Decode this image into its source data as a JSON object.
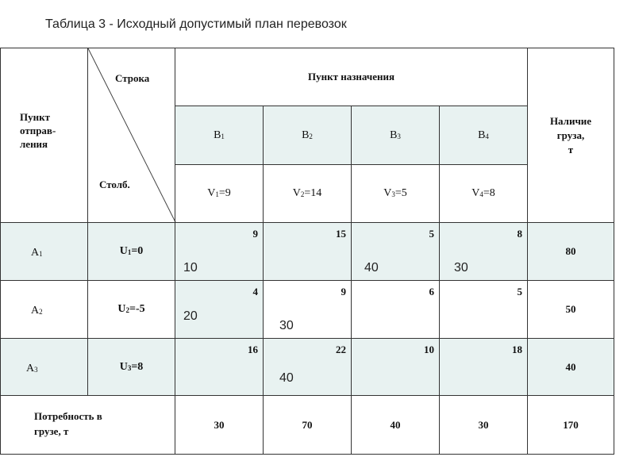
{
  "caption": "Таблица 3 - Исходный допустимый план перевозок",
  "header": {
    "sender_line1": "Пункт",
    "sender_line2": "отправ-",
    "sender_line3": "ления",
    "row_label": "Строка",
    "col_label": "Столб.",
    "destination": "Пункт назначения",
    "supply_line1": "Наличие",
    "supply_line2": "груза,",
    "supply_line3": "т"
  },
  "destinations": [
    {
      "letter": "B",
      "sub": "1",
      "pot_letter": "V",
      "pot_sub": "1",
      "pot_val": "=9"
    },
    {
      "letter": "B",
      "sub": "2",
      "pot_letter": "V",
      "pot_sub": "2",
      "pot_val": "=14"
    },
    {
      "letter": "B",
      "sub": "3",
      "pot_letter": "V",
      "pot_sub": "3",
      "pot_val": "=5"
    },
    {
      "letter": "B",
      "sub": "4",
      "pot_letter": "V",
      "pot_sub": "4",
      "pot_val": "=8"
    }
  ],
  "rows": [
    {
      "letter": "A",
      "sub": "1",
      "pot_letter": "U",
      "pot_sub": "1",
      "pot_val": "=0",
      "costs": [
        "9",
        "15",
        "5",
        "8"
      ],
      "alloc": [
        "10",
        "",
        "40",
        "30"
      ],
      "supply": "80"
    },
    {
      "letter": "A",
      "sub": "2",
      "pot_letter": "U",
      "pot_sub": "2",
      "pot_val": "=-5",
      "costs": [
        "4",
        "9",
        "6",
        "5"
      ],
      "alloc": [
        "20",
        "30",
        "",
        ""
      ],
      "supply": "50"
    },
    {
      "letter": "A",
      "sub": "3",
      "pot_letter": "U",
      "pot_sub": "3",
      "pot_val": "=8",
      "costs": [
        "16",
        "22",
        "10",
        "18"
      ],
      "alloc": [
        "",
        "40",
        "",
        ""
      ],
      "supply": "40"
    }
  ],
  "demand": {
    "label_line1": "Потребность в",
    "label_line2": "грузе, т",
    "values": [
      "30",
      "70",
      "40",
      "30"
    ],
    "total": "170"
  }
}
